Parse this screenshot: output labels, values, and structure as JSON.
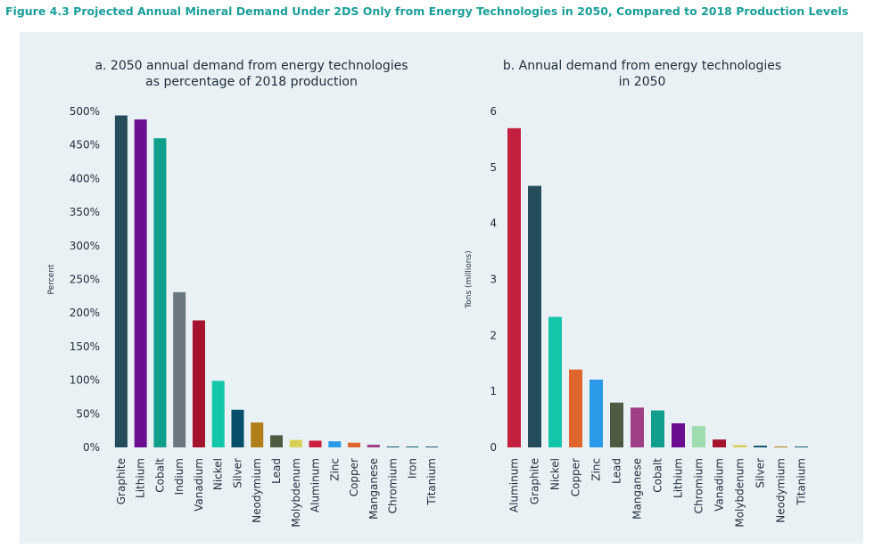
{
  "figure_title": "Figure 4.3 Projected Annual Mineral Demand Under 2DS Only from Energy Technologies in 2050, Compared to 2018 Production Levels",
  "chart_data": [
    {
      "type": "bar",
      "title_lines": [
        "a. 2050 annual demand from energy technologies",
        "as percentage of 2018 production"
      ],
      "ylabel": "Percent",
      "ylim": [
        0,
        500
      ],
      "yticks": [
        0,
        50,
        100,
        150,
        200,
        250,
        300,
        350,
        400,
        450,
        500
      ],
      "ytick_labels": [
        "0%",
        "50%",
        "100%",
        "150%",
        "200%",
        "250%",
        "300%",
        "350%",
        "400%",
        "450%",
        "500%"
      ],
      "categories": [
        "Graphite",
        "Lithium",
        "Cobalt",
        "Indium",
        "Vanadium",
        "Nickel",
        "Silver",
        "Neodymium",
        "Lead",
        "Molybdenum",
        "Aluminum",
        "Zinc",
        "Copper",
        "Manganese",
        "Chromium",
        "Iron",
        "Titanium"
      ],
      "values": [
        494,
        488,
        460,
        231,
        189,
        99,
        56,
        37,
        18,
        11,
        10,
        9,
        7,
        4,
        1,
        1,
        1
      ],
      "colors": [
        "#244c5a",
        "#6b0e8f",
        "#119f8d",
        "#6b7880",
        "#a5132e",
        "#14c6a8",
        "#064f6b",
        "#b07f18",
        "#4e5a42",
        "#d8cf57",
        "#cc1f3f",
        "#2a9ae8",
        "#e0652c",
        "#9e3f88",
        "#1e5b78",
        "#1e5b78",
        "#1e5b78"
      ],
      "grid": false,
      "legend": "none"
    },
    {
      "type": "bar",
      "title_lines": [
        "b. Annual demand from energy technologies",
        "in 2050"
      ],
      "ylabel": "Tons (millions)",
      "ylim": [
        0,
        6
      ],
      "yticks": [
        0,
        1,
        2,
        3,
        4,
        5,
        6
      ],
      "ytick_labels": [
        "0",
        "1",
        "2",
        "3",
        "4",
        "5",
        "6"
      ],
      "categories": [
        "Aluminum",
        "Graphite",
        "Nickel",
        "Copper",
        "Zinc",
        "Lead",
        "Manganese",
        "Cobalt",
        "Lithium",
        "Chromium",
        "Vanadium",
        "Molybdenum",
        "Silver",
        "Neodymium",
        "Titanium"
      ],
      "values": [
        5.7,
        4.67,
        2.33,
        1.39,
        1.21,
        0.8,
        0.71,
        0.66,
        0.43,
        0.38,
        0.14,
        0.04,
        0.03,
        0.01,
        0.01
      ],
      "colors": [
        "#c2203e",
        "#244c5a",
        "#14c6a8",
        "#e0652c",
        "#2a9ae8",
        "#4e5a42",
        "#9e3f88",
        "#119f8d",
        "#6b0e8f",
        "#9fdcb0",
        "#a5132e",
        "#d8cf57",
        "#064f6b",
        "#b07f18",
        "#1e5b78"
      ],
      "grid": false,
      "legend": "none"
    }
  ]
}
